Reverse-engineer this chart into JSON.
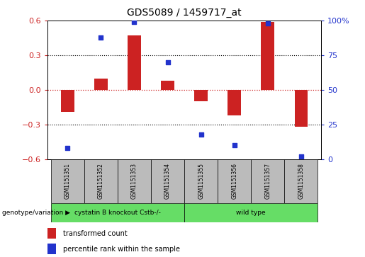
{
  "title": "GDS5089 / 1459717_at",
  "samples": [
    "GSM1151351",
    "GSM1151352",
    "GSM1151353",
    "GSM1151354",
    "GSM1151355",
    "GSM1151356",
    "GSM1151357",
    "GSM1151358"
  ],
  "bar_values": [
    -0.19,
    0.1,
    0.47,
    0.08,
    -0.1,
    -0.22,
    0.59,
    -0.32
  ],
  "percentile_values": [
    8,
    88,
    99,
    70,
    18,
    10,
    98,
    2
  ],
  "ylim_left": [
    -0.6,
    0.6
  ],
  "ylim_right": [
    0,
    100
  ],
  "yticks_left": [
    -0.6,
    -0.3,
    0.0,
    0.3,
    0.6
  ],
  "yticks_right": [
    0,
    25,
    50,
    75,
    100
  ],
  "bar_color": "#cc2222",
  "scatter_color": "#2233cc",
  "group1_label": "cystatin B knockout Cstb-/-",
  "group2_label": "wild type",
  "group1_count": 4,
  "group2_count": 4,
  "group_row_label": "genotype/variation",
  "legend1_label": "transformed count",
  "legend2_label": "percentile rank within the sample",
  "plot_bg_color": "#ffffff",
  "group_bg_color": "#bbbbbb",
  "green_color": "#66dd66",
  "tick_color_left": "#cc2222",
  "tick_color_right": "#2233cc",
  "bar_width": 0.4
}
